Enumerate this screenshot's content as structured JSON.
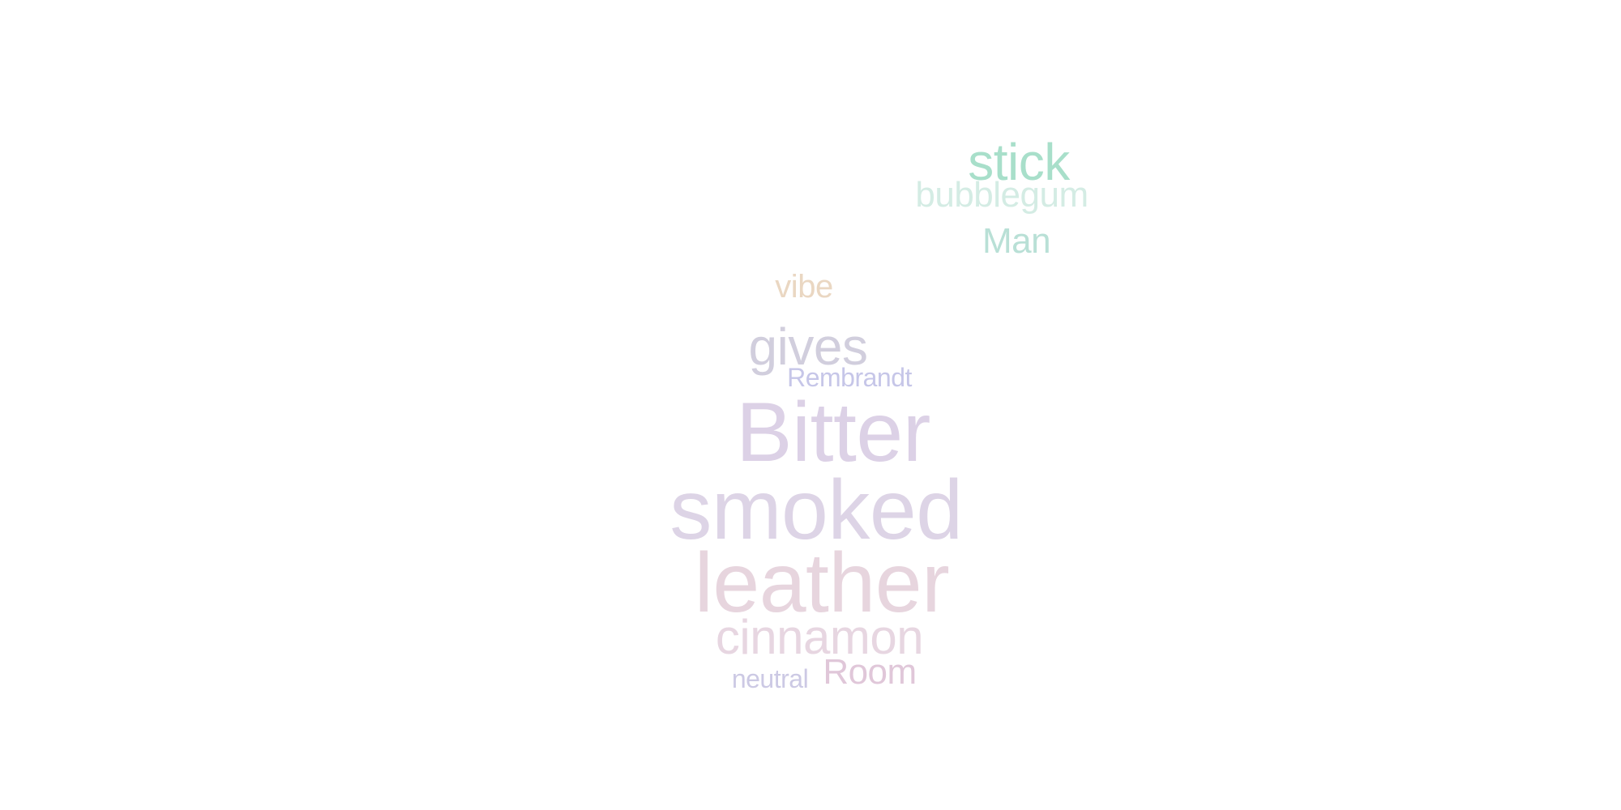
{
  "word_cloud": {
    "words": {
      "stick": "stick",
      "bubblegum": "bubblegum",
      "man": "Man",
      "vibe": "vibe",
      "gives": "gives",
      "rembrandt": "Rembrandt",
      "bitter": "Bitter",
      "smoked": "smoked",
      "leather": "leather",
      "cinnamon": "cinnamon",
      "room": "Room",
      "neutral": "neutral"
    },
    "colors": {
      "mint": "#a8dfca",
      "pale_mint": "#d4ece4",
      "sage": "#b9e0d6",
      "sand": "#ead7c2",
      "gray_lavender": "#d1cedd",
      "periwinkle": "#c6c6e8",
      "lavender": "#dcd1e6",
      "pink_lavender": "#e7d5de",
      "rose": "#e0c7d9"
    }
  }
}
